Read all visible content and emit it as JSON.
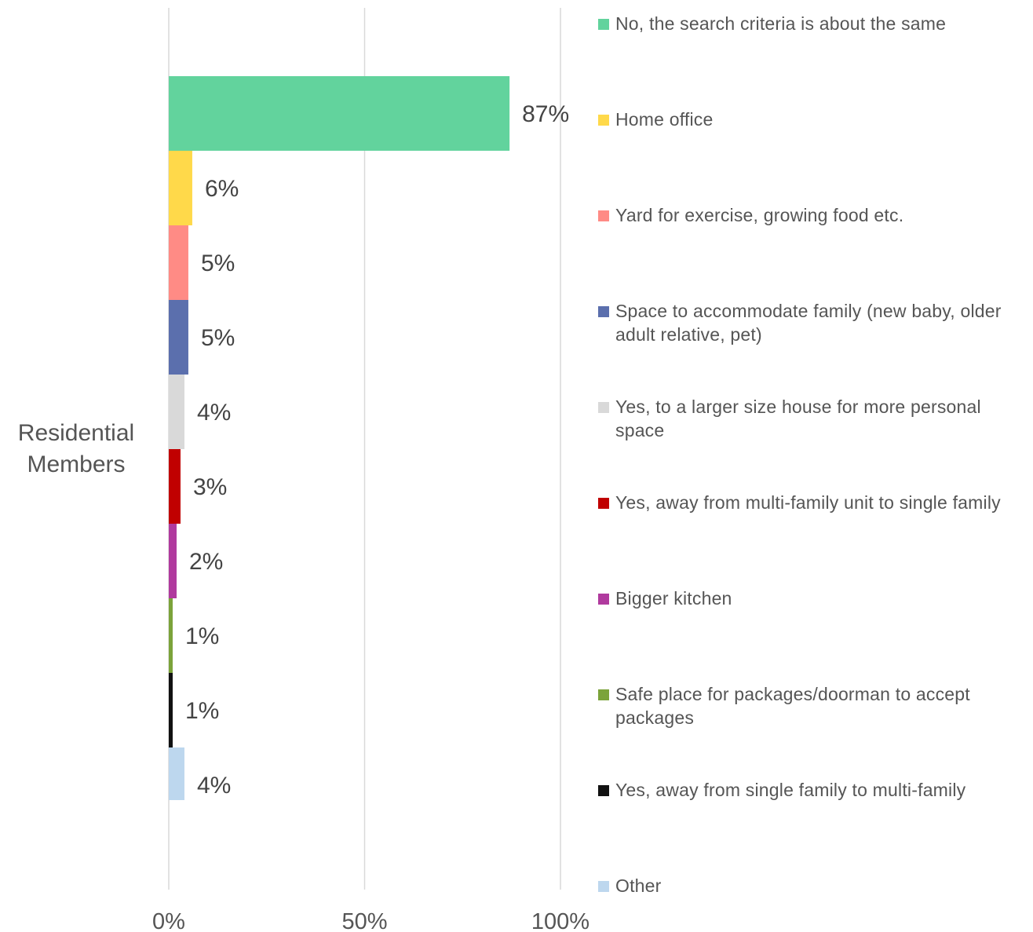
{
  "chart_data": {
    "type": "bar",
    "orientation": "horizontal",
    "category_label": "Residential Members",
    "xlim": [
      0,
      100
    ],
    "x_ticks": [
      "0%",
      "50%",
      "100%"
    ],
    "grid": true,
    "legend_position": "right",
    "series": [
      {
        "name": "No, the search criteria is about the same",
        "value": 87,
        "label": "87%",
        "color": "#62D39D"
      },
      {
        "name": "Home office",
        "value": 6,
        "label": "6%",
        "color": "#FFD94A"
      },
      {
        "name": "Yard for exercise, growing food etc.",
        "value": 5,
        "label": "5%",
        "color": "#FF8B85"
      },
      {
        "name": "Space to accommodate family (new baby, older adult relative, pet)",
        "value": 5,
        "label": "5%",
        "color": "#5B6FAD"
      },
      {
        "name": "Yes, to a larger size house for more personal space",
        "value": 4,
        "label": "4%",
        "color": "#D9D9D9"
      },
      {
        "name": "Yes, away from multi-family unit to single family",
        "value": 3,
        "label": "3%",
        "color": "#C00000"
      },
      {
        "name": "Bigger kitchen",
        "value": 2,
        "label": "2%",
        "color": "#B03A9E"
      },
      {
        "name": "Safe place for packages/doorman to accept packages",
        "value": 1,
        "label": "1%",
        "color": "#7BA33A"
      },
      {
        "name": "Yes, away from single family to multi-family",
        "value": 1,
        "label": "1%",
        "color": "#111111"
      },
      {
        "name": "Other",
        "value": 4,
        "label": "4%",
        "color": "#BDD7EE"
      }
    ]
  }
}
